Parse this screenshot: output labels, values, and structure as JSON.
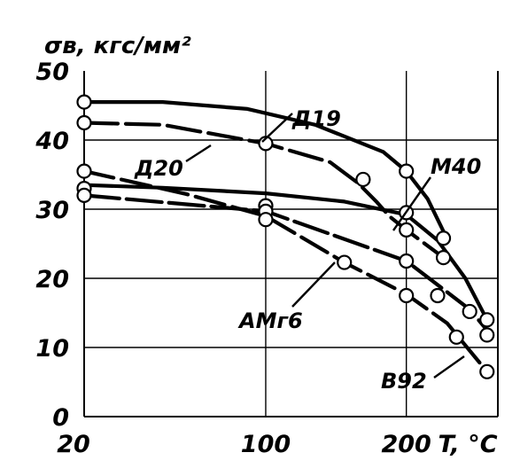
{
  "chart_data": {
    "type": "line",
    "ylabel": "σв, кгс/мм²",
    "xlabel": "T, °C",
    "x_ticks": [
      "20",
      "100",
      "200"
    ],
    "y_ticks": [
      "0",
      "10",
      "20",
      "30",
      "40",
      "50"
    ],
    "ylim": [
      0,
      50
    ],
    "grid": true,
    "series": [
      {
        "name": "Д19",
        "curve": [
          [
            20,
            45.5
          ],
          [
            50,
            45.5
          ],
          [
            90,
            44.5
          ],
          [
            130,
            42.2
          ],
          [
            180,
            38.3
          ],
          [
            200,
            35.5
          ],
          [
            220,
            31.5
          ],
          [
            236,
            26.8
          ]
        ],
        "points": [
          [
            20,
            45.5
          ],
          [
            200,
            35.5
          ],
          [
            236,
            25.8
          ]
        ]
      },
      {
        "name": "Д20",
        "curve": [
          [
            20,
            42.5
          ],
          [
            50,
            42.2
          ],
          [
            100,
            39.5
          ],
          [
            140,
            36.8
          ],
          [
            160,
            33.8
          ],
          [
            175,
            31.0
          ],
          [
            185,
            29.0
          ],
          [
            200,
            27.0
          ],
          [
            236,
            23.0
          ]
        ],
        "points": [
          [
            20,
            42.5
          ],
          [
            100,
            39.5
          ],
          [
            164,
            34.3
          ],
          [
            200,
            27.0
          ],
          [
            236,
            23.0
          ]
        ]
      },
      {
        "name": "М40",
        "curve": [
          [
            20,
            33.5
          ],
          [
            50,
            33.1
          ],
          [
            100,
            32.3
          ],
          [
            150,
            31.1
          ],
          [
            200,
            29.2
          ],
          [
            230,
            25.5
          ],
          [
            260,
            20.0
          ],
          [
            286,
            14.0
          ]
        ],
        "points": [
          [
            20,
            33.0
          ],
          [
            100,
            30.5
          ],
          [
            200,
            29.5
          ],
          [
            286,
            14.0
          ]
        ]
      },
      {
        "name": "АМг6",
        "curve": [
          [
            20,
            32.0
          ],
          [
            100,
            29.7
          ],
          [
            200,
            22.5
          ],
          [
            240,
            18.0
          ],
          [
            265,
            15.5
          ],
          [
            286,
            12.5
          ]
        ],
        "points": [
          [
            20,
            32.0
          ],
          [
            100,
            29.7
          ],
          [
            200,
            22.5
          ],
          [
            230,
            17.5
          ],
          [
            265,
            15.2
          ],
          [
            286,
            11.8
          ]
        ]
      },
      {
        "name": "В92",
        "curve": [
          [
            20,
            35.5
          ],
          [
            60,
            32.2
          ],
          [
            100,
            29.0
          ],
          [
            150,
            22.3
          ],
          [
            200,
            17.7
          ],
          [
            240,
            13.5
          ],
          [
            286,
            6.5
          ]
        ],
        "points": [
          [
            20,
            35.5
          ],
          [
            100,
            28.5
          ],
          [
            150,
            22.3
          ],
          [
            200,
            17.5
          ],
          [
            250,
            11.5
          ],
          [
            286,
            6.5
          ]
        ]
      }
    ]
  }
}
